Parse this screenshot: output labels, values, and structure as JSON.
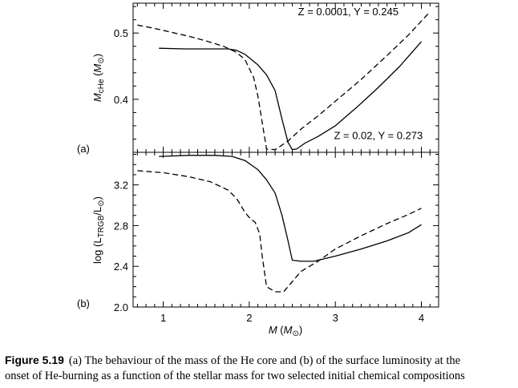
{
  "chart_data": [
    {
      "type": "line",
      "panel_label": "(a)",
      "xlabel": "",
      "ylabel_main": "M",
      "ylabel_sub": "cHe",
      "ylabel_unit_main": "M",
      "ylabel_unit_sub": "⊙",
      "xlim": [
        0.65,
        4.2
      ],
      "ylim": [
        0.32,
        0.545
      ],
      "x_ticks": [
        1,
        2,
        3,
        4
      ],
      "y_ticks": [
        0.4,
        0.5
      ],
      "y_tick_labels": [
        "0.4",
        "0.5"
      ],
      "series": [
        {
          "name": "Z = 0.02, Y = 0.273",
          "style": "solid",
          "color": "#000000",
          "points": [
            [
              0.95,
              0.477
            ],
            [
              1.25,
              0.476
            ],
            [
              1.55,
              0.476
            ],
            [
              1.75,
              0.476
            ],
            [
              1.85,
              0.474
            ],
            [
              1.95,
              0.468
            ],
            [
              2.1,
              0.452
            ],
            [
              2.2,
              0.437
            ],
            [
              2.3,
              0.413
            ],
            [
              2.38,
              0.37
            ],
            [
              2.45,
              0.335
            ],
            [
              2.5,
              0.324
            ],
            [
              2.55,
              0.325
            ],
            [
              2.65,
              0.334
            ],
            [
              2.8,
              0.344
            ],
            [
              3.0,
              0.36
            ],
            [
              3.25,
              0.388
            ],
            [
              3.5,
              0.418
            ],
            [
              3.75,
              0.45
            ],
            [
              4.0,
              0.487
            ]
          ]
        },
        {
          "name": "Z = 0.0001, Y = 0.245",
          "style": "dashed",
          "color": "#000000",
          "points": [
            [
              0.7,
              0.512
            ],
            [
              0.9,
              0.507
            ],
            [
              1.1,
              0.501
            ],
            [
              1.3,
              0.495
            ],
            [
              1.5,
              0.488
            ],
            [
              1.7,
              0.48
            ],
            [
              1.85,
              0.471
            ],
            [
              1.95,
              0.46
            ],
            [
              2.05,
              0.433
            ],
            [
              2.1,
              0.405
            ],
            [
              2.15,
              0.365
            ],
            [
              2.2,
              0.325
            ],
            [
              2.3,
              0.324
            ],
            [
              2.45,
              0.337
            ],
            [
              2.6,
              0.355
            ],
            [
              2.8,
              0.375
            ],
            [
              3.0,
              0.397
            ],
            [
              3.3,
              0.43
            ],
            [
              3.6,
              0.466
            ],
            [
              3.85,
              0.497
            ],
            [
              4.0,
              0.518
            ],
            [
              4.1,
              0.532
            ]
          ]
        }
      ],
      "annotations": [
        {
          "text": "Z = 0.0001,  Y = 0.245",
          "x": 3.15,
          "y": 0.527
        },
        {
          "text": "Z = 0.02,  Y = 0.273",
          "x": 3.5,
          "y": 0.34
        }
      ]
    },
    {
      "type": "line",
      "panel_label": "(b)",
      "xlabel_main": "M",
      "xlabel_unit_main": "M",
      "xlabel_unit_sub": "⊙",
      "ylabel_main": "log (L",
      "ylabel_sub": "TRGB",
      "ylabel_mid": "/L",
      "ylabel_sub2": "⊙",
      "ylabel_end": ")",
      "xlim": [
        0.65,
        4.2
      ],
      "ylim": [
        2.0,
        3.52
      ],
      "x_ticks": [
        1,
        2,
        3,
        4
      ],
      "x_tick_labels": [
        "1",
        "2",
        "3",
        "4"
      ],
      "y_ticks": [
        2.0,
        2.4,
        2.8,
        3.2
      ],
      "y_tick_labels": [
        "2.0",
        "2.4",
        "2.8",
        "3.2"
      ],
      "series": [
        {
          "name": "Z = 0.02, Y = 0.273",
          "style": "solid",
          "color": "#000000",
          "points": [
            [
              0.95,
              3.48
            ],
            [
              1.3,
              3.49
            ],
            [
              1.6,
              3.49
            ],
            [
              1.8,
              3.48
            ],
            [
              1.95,
              3.44
            ],
            [
              2.1,
              3.35
            ],
            [
              2.2,
              3.25
            ],
            [
              2.3,
              3.12
            ],
            [
              2.38,
              2.9
            ],
            [
              2.45,
              2.65
            ],
            [
              2.5,
              2.46
            ],
            [
              2.6,
              2.45
            ],
            [
              2.75,
              2.45
            ],
            [
              3.0,
              2.5
            ],
            [
              3.3,
              2.57
            ],
            [
              3.6,
              2.65
            ],
            [
              3.85,
              2.73
            ],
            [
              4.0,
              2.81
            ]
          ]
        },
        {
          "name": "Z = 0.0001, Y = 0.245",
          "style": "dashed",
          "color": "#000000",
          "points": [
            [
              0.7,
              3.34
            ],
            [
              1.0,
              3.32
            ],
            [
              1.3,
              3.28
            ],
            [
              1.55,
              3.23
            ],
            [
              1.75,
              3.15
            ],
            [
              1.85,
              3.07
            ],
            [
              1.95,
              2.93
            ],
            [
              2.0,
              2.88
            ],
            [
              2.07,
              2.83
            ],
            [
              2.12,
              2.72
            ],
            [
              2.15,
              2.5
            ],
            [
              2.2,
              2.2
            ],
            [
              2.3,
              2.15
            ],
            [
              2.4,
              2.15
            ],
            [
              2.5,
              2.25
            ],
            [
              2.6,
              2.35
            ],
            [
              2.8,
              2.45
            ],
            [
              3.0,
              2.57
            ],
            [
              3.3,
              2.7
            ],
            [
              3.6,
              2.82
            ],
            [
              3.85,
              2.91
            ],
            [
              4.0,
              2.97
            ]
          ]
        }
      ]
    }
  ],
  "caption": {
    "label": "Figure 5.19",
    "line1": "(a) The behaviour of the mass of the He core and (b) of the surface luminosity at the",
    "line2": "onset of He-burning as a function of the stellar mass for two selected initial chemical compositions"
  }
}
